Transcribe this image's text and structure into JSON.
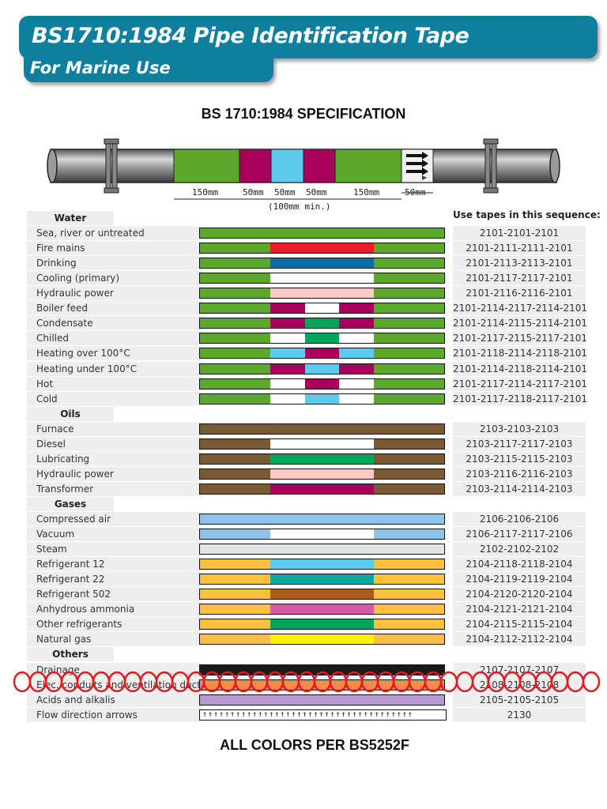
{
  "header": {
    "title": "BS1710:1984 Pipe Identification Tape",
    "subtitle": "For Marine Use"
  },
  "spec_heading": "BS 1710:1984 SPECIFICATION",
  "diagram": {
    "dims": [
      "150mm",
      "50mm",
      "50mm",
      "50mm",
      "150mm",
      "50mm"
    ],
    "min_note": "(100mm min.)",
    "colors": {
      "green": "#5ca82a",
      "crimson": "#a8005a",
      "light_blue": "#5ccbed"
    }
  },
  "sequence_heading": "Use tapes in this sequence:",
  "sections": [
    {
      "name": "Water",
      "rows": [
        {
          "label": "Sea, river or untreated",
          "code": "2101-2101-2101",
          "base": "#5ca82a",
          "pattern": []
        },
        {
          "label": "Fire mains",
          "code": "2101-2111-2111-2101",
          "base": "#5ca82a",
          "pattern": [
            "#ee1c25"
          ]
        },
        {
          "label": "Drinking",
          "code": "2101-2113-2113-2101",
          "base": "#5ca82a",
          "pattern": [
            "#0a6ea8"
          ]
        },
        {
          "label": "Cooling (primary)",
          "code": "2101-2117-2117-2101",
          "base": "#5ca82a",
          "pattern": [
            "#ffffff"
          ]
        },
        {
          "label": "Hydraulic power",
          "code": "2101-2116-2116-2101",
          "base": "#5ca82a",
          "pattern": [
            "#fbc8c8"
          ]
        },
        {
          "label": "Boiler feed",
          "code": "2101-2114-2117-2114-2101",
          "base": "#5ca82a",
          "pattern": [
            "#a8005a",
            "#ffffff",
            "#a8005a"
          ]
        },
        {
          "label": "Condensate",
          "code": "2101-2114-2115-2114-2101",
          "base": "#5ca82a",
          "pattern": [
            "#a8005a",
            "#00a65a",
            "#a8005a"
          ]
        },
        {
          "label": "Chilled",
          "code": "2101-2117-2115-2117-2101",
          "base": "#5ca82a",
          "pattern": [
            "#ffffff",
            "#00a65a",
            "#ffffff"
          ]
        },
        {
          "label": "Heating over 100°C",
          "code": "2101-2118-2114-2118-2101",
          "base": "#5ca82a",
          "pattern": [
            "#5ccbed",
            "#a8005a",
            "#5ccbed"
          ]
        },
        {
          "label": "Heating under 100°C",
          "code": "2101-2114-2118-2114-2101",
          "base": "#5ca82a",
          "pattern": [
            "#a8005a",
            "#5ccbed",
            "#a8005a"
          ]
        },
        {
          "label": "Hot",
          "code": "2101-2117-2114-2117-2101",
          "base": "#5ca82a",
          "pattern": [
            "#ffffff",
            "#a8005a",
            "#ffffff"
          ]
        },
        {
          "label": "Cold",
          "code": "2101-2117-2118-2117-2101",
          "base": "#5ca82a",
          "pattern": [
            "#ffffff",
            "#5ccbed",
            "#ffffff"
          ]
        }
      ]
    },
    {
      "name": "Oils",
      "rows": [
        {
          "label": "Furnace",
          "code": "2103-2103-2103",
          "base": "#7a5a32",
          "pattern": []
        },
        {
          "label": "Diesel",
          "code": "2103-2117-2117-2103",
          "base": "#7a5a32",
          "pattern": [
            "#ffffff"
          ]
        },
        {
          "label": "Lubricating",
          "code": "2103-2115-2115-2103",
          "base": "#7a5a32",
          "pattern": [
            "#00a65a"
          ]
        },
        {
          "label": "Hydraulic power",
          "code": "2103-2116-2116-2103",
          "base": "#7a5a32",
          "pattern": [
            "#fbc8c8"
          ]
        },
        {
          "label": "Transformer",
          "code": "2103-2114-2114-2103",
          "base": "#7a5a32",
          "pattern": [
            "#a8005a"
          ]
        }
      ]
    },
    {
      "name": "Gases",
      "rows": [
        {
          "label": "Compressed air",
          "code": "2106-2106-2106",
          "base": "#8ec3ea",
          "pattern": []
        },
        {
          "label": "Vacuum",
          "code": "2106-2117-2117-2106",
          "base": "#8ec3ea",
          "pattern": [
            "#ffffff"
          ]
        },
        {
          "label": "Steam",
          "code": "2102-2102-2102",
          "base": "#e2e4e6",
          "pattern": []
        },
        {
          "label": "Refrigerant 12",
          "code": "2104-2118-2118-2104",
          "base": "#fdc13e",
          "pattern": [
            "#5ccbed"
          ]
        },
        {
          "label": "Refrigerant 22",
          "code": "2104-2119-2119-2104",
          "base": "#fdc13e",
          "pattern": [
            "#0fa7a0"
          ]
        },
        {
          "label": "Refrigerant 502",
          "code": "2104-2120-2120-2104",
          "base": "#fdc13e",
          "pattern": [
            "#b05a18"
          ]
        },
        {
          "label": "Anhydrous ammonia",
          "code": "2104-2121-2121-2104",
          "base": "#fdc13e",
          "pattern": [
            "#d65aa6"
          ]
        },
        {
          "label": "Other refrigerants",
          "code": "2104-2115-2115-2104",
          "base": "#fdc13e",
          "pattern": [
            "#00a65a"
          ]
        },
        {
          "label": "Natural gas",
          "code": "2104-2112-2112-2104",
          "base": "#fdc13e",
          "pattern": [
            "#fff200"
          ]
        }
      ]
    },
    {
      "name": "Others",
      "rows": [
        {
          "label": "Drainage",
          "code": "2107-2107-2107",
          "base": "#1a1a1a",
          "pattern": []
        },
        {
          "label": "Elec. conduits and ventilation ducts",
          "code": "2108-2108-2108",
          "base": "#f58a4a",
          "pattern": []
        },
        {
          "label": "Acids and alkalis",
          "code": "2105-2105-2105",
          "base": "#b89ad0",
          "pattern": []
        },
        {
          "label": "Flow direction arrows",
          "code": "2130",
          "base": "arrows",
          "pattern": []
        }
      ]
    }
  ],
  "footer": "ALL COLORS PER BS5252F"
}
